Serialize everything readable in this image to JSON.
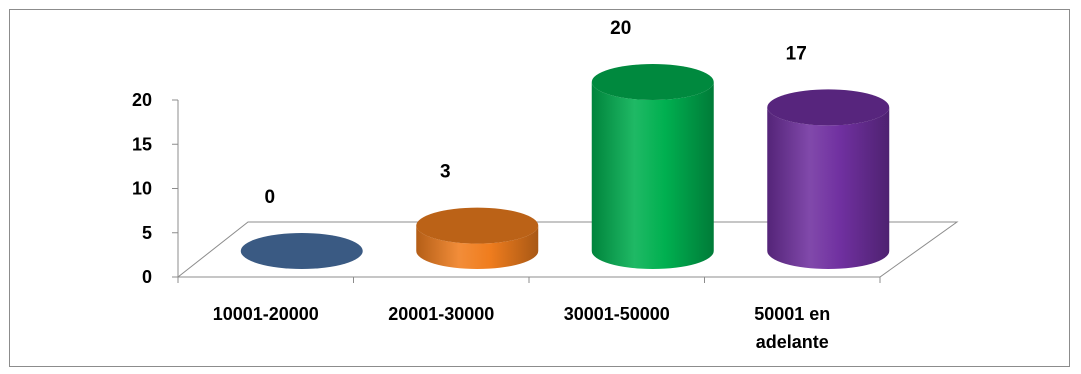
{
  "chart_data": {
    "type": "bar",
    "style": "3d-cylinder",
    "categories": [
      "10001-20000",
      "20001-30000",
      "30001-50000",
      "50001 en adelante"
    ],
    "category_label_lines": [
      [
        "10001-20000"
      ],
      [
        "20001-30000"
      ],
      [
        "30001-50000"
      ],
      [
        "50001 en",
        "adelante"
      ]
    ],
    "values": [
      0,
      3,
      20,
      17
    ],
    "data_labels": [
      "0",
      "3",
      "20",
      "17"
    ],
    "colors": [
      "#4a74a8",
      "#f07d1e",
      "#00b050",
      "#7030a0"
    ],
    "y_ticks": [
      "0",
      "5",
      "10",
      "15",
      "20"
    ],
    "ylim": [
      0,
      20
    ],
    "grid": false,
    "legend": "none"
  }
}
